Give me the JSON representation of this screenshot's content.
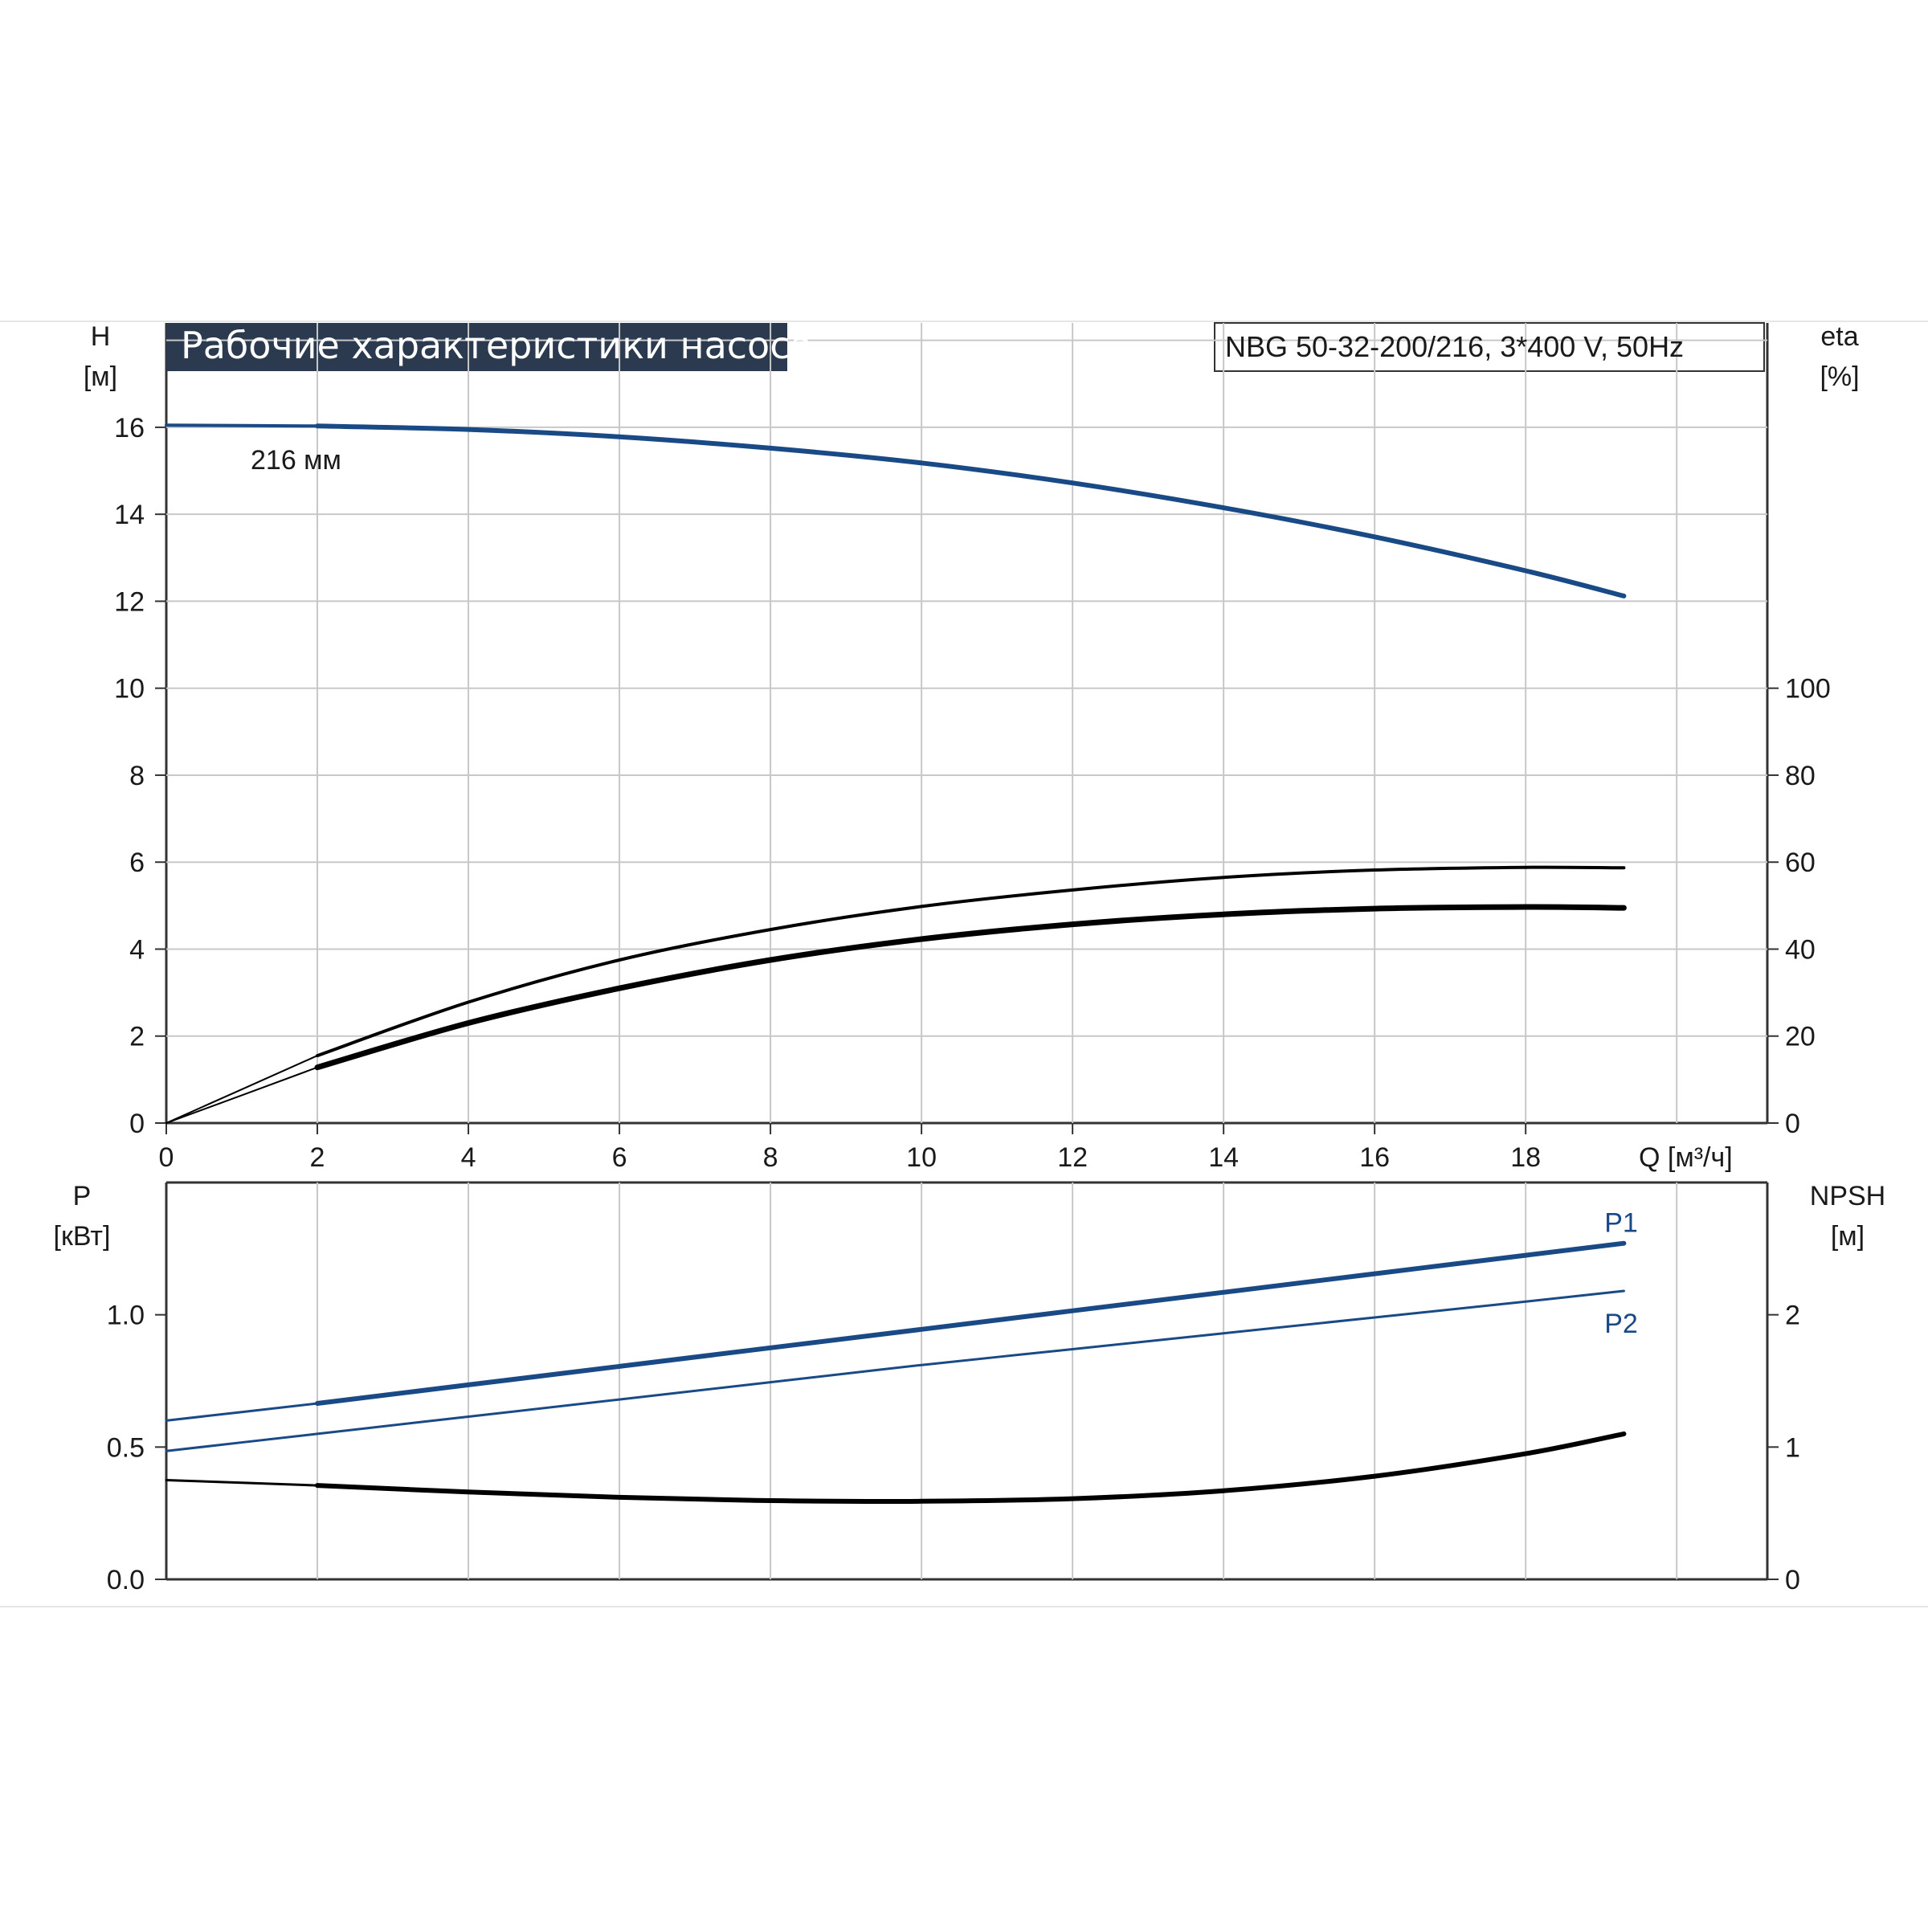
{
  "header": {
    "title": "Рабочие характеристики насоса",
    "model": "NBG 50-32-200/216, 3*400 V, 50Hz"
  },
  "colors": {
    "blue": "#1a4a86",
    "black": "#000000",
    "grid": "#c8c8c8",
    "title_bg": "#2b3a4e"
  },
  "chart_data": [
    {
      "type": "line",
      "x_label": "Q [м³/ч]",
      "x_ticks": [
        "0",
        "2",
        "4",
        "6",
        "8",
        "10",
        "12",
        "14",
        "16",
        "18"
      ],
      "xlim": [
        0,
        21.2
      ],
      "left_axis": {
        "label": "H",
        "unit": "[м]",
        "ylim": [
          0,
          18.4
        ],
        "ticks": [
          "0",
          "2",
          "4",
          "6",
          "8",
          "10",
          "12",
          "14",
          "16"
        ]
      },
      "right_axis": {
        "label": "eta",
        "unit": "[%]",
        "ylim": [
          0,
          184
        ],
        "ticks": [
          "0",
          "20",
          "40",
          "60",
          "80",
          "100"
        ]
      },
      "grid": true,
      "annotations": [
        {
          "text": "216 мм"
        }
      ],
      "series": [
        {
          "axis": "left",
          "color": "#1a4a86",
          "x": [
            0,
            2,
            4,
            6,
            8,
            10,
            12,
            14,
            16,
            18,
            19.3
          ],
          "y": [
            16.05,
            16.03,
            15.95,
            15.78,
            15.52,
            15.18,
            14.72,
            14.15,
            13.48,
            12.7,
            12.12
          ]
        },
        {
          "axis": "right",
          "color": "#000000",
          "x": [
            0,
            2,
            4,
            6,
            8,
            10,
            12,
            14,
            16,
            18,
            19.3
          ],
          "y": [
            0,
            15.5,
            27.8,
            37.5,
            44.5,
            49.8,
            53.6,
            56.5,
            58.2,
            58.8,
            58.7
          ]
        },
        {
          "axis": "right",
          "color": "#000000",
          "x": [
            0,
            2,
            4,
            6,
            8,
            10,
            12,
            14,
            16,
            18,
            19.3
          ],
          "y": [
            0,
            12.8,
            23.0,
            31.0,
            37.5,
            42.3,
            45.7,
            48.0,
            49.3,
            49.7,
            49.5
          ]
        }
      ]
    },
    {
      "type": "line",
      "xlim": [
        0,
        21.2
      ],
      "left_axis": {
        "label": "P",
        "unit": "[кВт]",
        "ylim": [
          0,
          1.5
        ],
        "ticks": [
          "0.0",
          "0.5",
          "1.0"
        ]
      },
      "right_axis": {
        "label": "NPSH",
        "unit": "[м]",
        "ylim": [
          0,
          3.0
        ],
        "ticks": [
          "0",
          "1",
          "2"
        ]
      },
      "grid": true,
      "series": [
        {
          "name": "P1",
          "axis": "left",
          "color": "#1a4a86",
          "x": [
            0,
            2,
            4,
            6,
            8,
            10,
            12,
            14,
            16,
            18,
            19.3
          ],
          "y": [
            0.6,
            0.665,
            0.735,
            0.805,
            0.875,
            0.945,
            1.015,
            1.085,
            1.155,
            1.225,
            1.27
          ]
        },
        {
          "name": "P2",
          "axis": "left",
          "color": "#1a4a86",
          "x": [
            0,
            2,
            4,
            6,
            8,
            10,
            12,
            14,
            16,
            18,
            19.3
          ],
          "y": [
            0.485,
            0.55,
            0.615,
            0.68,
            0.745,
            0.81,
            0.87,
            0.93,
            0.99,
            1.05,
            1.09
          ]
        },
        {
          "axis": "right",
          "color": "#000000",
          "x": [
            0,
            2,
            4,
            6,
            8,
            10,
            12,
            14,
            16,
            18,
            19.3
          ],
          "y": [
            0.75,
            0.71,
            0.66,
            0.62,
            0.595,
            0.59,
            0.61,
            0.67,
            0.78,
            0.95,
            1.1
          ]
        }
      ]
    }
  ]
}
